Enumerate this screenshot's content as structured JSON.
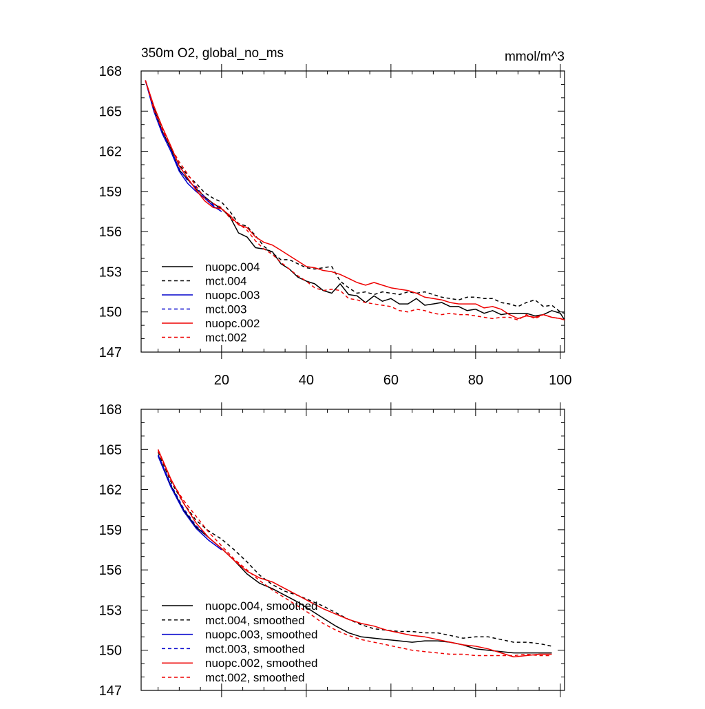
{
  "chart_data": [
    {
      "type": "line",
      "title_left": "350m O2, global_no_ms",
      "title_right": "mmol/m^3",
      "xlabel": "",
      "ylabel": "",
      "xlim": [
        1,
        101
      ],
      "ylim": [
        147,
        168
      ],
      "x_ticks": [
        20,
        40,
        60,
        80,
        100
      ],
      "x_tick_labels": [
        "20",
        "40",
        "60",
        "80",
        "100"
      ],
      "y_ticks": [
        147,
        150,
        153,
        156,
        159,
        162,
        165,
        168
      ],
      "y_tick_labels": [
        "147",
        "150",
        "153",
        "156",
        "159",
        "162",
        "165",
        "168"
      ],
      "legend_position": "lower-left",
      "series": [
        {
          "name": "nuopc.004",
          "color": "#000000",
          "dash": "solid",
          "x": [
            2,
            4,
            6,
            8,
            10,
            12,
            14,
            16,
            18,
            20,
            22,
            24,
            26,
            28,
            30,
            32,
            34,
            36,
            38,
            40,
            42,
            44,
            46,
            48,
            50,
            52,
            54,
            56,
            58,
            60,
            62,
            64,
            66,
            68,
            70,
            72,
            74,
            76,
            78,
            80,
            82,
            84,
            86,
            88,
            90,
            92,
            94,
            96,
            98,
            100,
            101
          ],
          "y": [
            167.3,
            165.2,
            163.5,
            162.2,
            160.6,
            159.9,
            159.2,
            158.6,
            158.1,
            157.7,
            157.1,
            155.9,
            155.6,
            154.8,
            154.7,
            154.5,
            153.6,
            153.2,
            152.6,
            152.3,
            152.1,
            151.6,
            151.4,
            152.1,
            151.3,
            151.2,
            150.7,
            151.2,
            150.8,
            151.0,
            150.6,
            150.6,
            151.0,
            150.5,
            150.6,
            150.7,
            150.4,
            150.4,
            150.1,
            150.2,
            149.9,
            150.1,
            149.8,
            149.9,
            149.9,
            149.9,
            149.7,
            149.8,
            150.1,
            149.9,
            149.4
          ]
        },
        {
          "name": "mct.004",
          "color": "#000000",
          "dash": "dashed",
          "x": [
            2,
            4,
            6,
            8,
            10,
            12,
            14,
            16,
            18,
            20,
            22,
            24,
            26,
            28,
            30,
            32,
            34,
            36,
            38,
            40,
            42,
            44,
            46,
            48,
            50,
            52,
            54,
            56,
            58,
            60,
            62,
            64,
            66,
            68,
            70,
            72,
            74,
            76,
            78,
            80,
            82,
            84,
            86,
            88,
            90,
            92,
            94,
            96,
            98,
            100,
            101
          ],
          "y": [
            167.3,
            165.3,
            163.7,
            162.3,
            161.0,
            160.2,
            159.6,
            158.9,
            158.5,
            158.2,
            157.5,
            156.6,
            156.4,
            155.7,
            154.9,
            154.4,
            153.9,
            153.9,
            153.6,
            153.3,
            153.2,
            153.3,
            153.4,
            152.3,
            151.8,
            151.4,
            151.5,
            151.3,
            151.5,
            151.4,
            151.3,
            151.5,
            151.4,
            151.5,
            151.3,
            151.1,
            151.0,
            150.9,
            151.1,
            151.1,
            151.0,
            151.0,
            150.7,
            150.6,
            150.4,
            150.7,
            150.9,
            150.4,
            150.5,
            150.0,
            149.9
          ]
        },
        {
          "name": "nuopc.003",
          "color": "#0000cc",
          "dash": "solid",
          "x": [
            2,
            4,
            6,
            8,
            10,
            12,
            14,
            16,
            18,
            20
          ],
          "y": [
            167.3,
            165.0,
            163.3,
            162.0,
            160.5,
            159.6,
            159.0,
            158.5,
            157.9,
            157.5
          ]
        },
        {
          "name": "mct.003",
          "color": "#0000cc",
          "dash": "dashed",
          "x": [
            2,
            4,
            6,
            8,
            10,
            12,
            14,
            16,
            18,
            20
          ],
          "y": [
            167.3,
            165.1,
            163.4,
            162.1,
            160.7,
            159.8,
            159.3,
            158.6,
            158.0,
            157.6
          ]
        },
        {
          "name": "nuopc.002",
          "color": "#ee0000",
          "dash": "solid",
          "x": [
            2,
            4,
            6,
            8,
            10,
            12,
            14,
            16,
            18,
            20,
            22,
            24,
            26,
            28,
            30,
            32,
            34,
            36,
            38,
            40,
            42,
            44,
            46,
            48,
            50,
            52,
            54,
            56,
            58,
            60,
            62,
            64,
            66,
            68,
            70,
            72,
            74,
            76,
            78,
            80,
            82,
            84,
            86,
            88,
            90,
            92,
            94,
            96,
            98,
            100,
            101
          ],
          "y": [
            167.3,
            165.4,
            163.8,
            162.4,
            160.9,
            160.0,
            159.1,
            158.3,
            157.8,
            157.7,
            157.2,
            156.5,
            156.3,
            155.6,
            155.2,
            155.0,
            154.6,
            154.2,
            153.8,
            153.4,
            153.3,
            153.1,
            153.0,
            152.8,
            152.5,
            152.2,
            152.0,
            152.2,
            152.0,
            151.8,
            151.7,
            151.6,
            151.4,
            151.1,
            151.0,
            150.9,
            150.7,
            150.6,
            150.6,
            150.6,
            150.3,
            150.4,
            150.2,
            149.8,
            149.5,
            149.7,
            149.6,
            149.8,
            149.6,
            149.5,
            149.4
          ]
        },
        {
          "name": "mct.002",
          "color": "#ee0000",
          "dash": "dashed",
          "x": [
            2,
            4,
            6,
            8,
            10,
            12,
            14,
            16,
            18,
            20,
            22,
            24,
            26,
            28,
            30,
            32,
            34,
            36,
            38,
            40,
            42,
            44,
            46,
            48,
            50,
            52,
            54,
            56,
            58,
            60,
            62,
            64,
            66,
            68,
            70,
            72,
            74,
            76,
            78,
            80,
            82,
            84,
            86,
            88,
            90,
            92,
            94,
            96,
            98,
            100,
            101
          ],
          "y": [
            167.3,
            165.1,
            163.6,
            162.3,
            161.2,
            160.3,
            159.4,
            158.5,
            158.1,
            157.8,
            157.0,
            156.6,
            156.1,
            155.3,
            154.7,
            154.3,
            153.7,
            153.2,
            152.7,
            152.3,
            151.8,
            151.6,
            151.7,
            151.6,
            151.0,
            150.9,
            150.7,
            150.6,
            150.5,
            150.4,
            150.1,
            150.0,
            150.2,
            150.1,
            149.9,
            149.8,
            149.9,
            149.8,
            149.8,
            149.7,
            149.6,
            149.5,
            149.6,
            149.6,
            149.4,
            149.8,
            149.5,
            149.8,
            149.6,
            149.5,
            149.4
          ]
        }
      ]
    },
    {
      "type": "line",
      "title_left": "",
      "title_right": "",
      "xlabel": "",
      "ylabel": "",
      "xlim": [
        1,
        101
      ],
      "ylim": [
        147,
        168
      ],
      "x_ticks": [
        20,
        40,
        60,
        80,
        100
      ],
      "x_tick_labels": [],
      "y_ticks": [
        147,
        150,
        153,
        156,
        159,
        162,
        165,
        168
      ],
      "y_tick_labels": [
        "147",
        "150",
        "153",
        "156",
        "159",
        "162",
        "165",
        "168"
      ],
      "legend_position": "lower-left",
      "series": [
        {
          "name": "nuopc.004, smoothed",
          "color": "#000000",
          "dash": "solid",
          "x": [
            5,
            8,
            11,
            14,
            17,
            20,
            23,
            26,
            29,
            32,
            35,
            38,
            41,
            44,
            47,
            50,
            53,
            56,
            59,
            62,
            65,
            68,
            71,
            74,
            77,
            80,
            83,
            86,
            89,
            92,
            95,
            98
          ],
          "y": [
            164.6,
            162.3,
            160.5,
            159.2,
            158.4,
            157.6,
            156.7,
            155.7,
            155.0,
            154.6,
            154.1,
            153.6,
            153.0,
            152.4,
            151.8,
            151.3,
            151.0,
            150.9,
            150.8,
            150.7,
            150.6,
            150.7,
            150.7,
            150.6,
            150.4,
            150.1,
            150.0,
            149.9,
            149.8,
            149.8,
            149.8,
            149.8
          ]
        },
        {
          "name": "mct.004, smoothed",
          "color": "#000000",
          "dash": "dashed",
          "x": [
            5,
            8,
            11,
            14,
            17,
            20,
            23,
            26,
            29,
            32,
            35,
            38,
            41,
            44,
            47,
            50,
            53,
            56,
            59,
            62,
            65,
            68,
            71,
            74,
            77,
            80,
            83,
            86,
            89,
            92,
            95,
            98
          ],
          "y": [
            164.8,
            162.6,
            161.0,
            159.7,
            158.9,
            158.3,
            157.5,
            156.6,
            155.6,
            154.9,
            154.4,
            154.1,
            153.7,
            153.3,
            152.8,
            152.3,
            151.9,
            151.6,
            151.5,
            151.4,
            151.4,
            151.3,
            151.3,
            151.1,
            150.9,
            151.0,
            151.0,
            150.8,
            150.6,
            150.6,
            150.5,
            150.3
          ]
        },
        {
          "name": "nuopc.003, smoothed",
          "color": "#0000cc",
          "dash": "solid",
          "x": [
            5,
            8,
            11,
            14,
            17,
            20
          ],
          "y": [
            164.5,
            162.2,
            160.4,
            159.1,
            158.2,
            157.5
          ]
        },
        {
          "name": "mct.003, smoothed",
          "color": "#0000cc",
          "dash": "dashed",
          "x": [
            5,
            8,
            11,
            14,
            17,
            20
          ],
          "y": [
            164.6,
            162.4,
            160.6,
            159.3,
            158.4,
            157.6
          ]
        },
        {
          "name": "nuopc.002, smoothed",
          "color": "#ee0000",
          "dash": "solid",
          "x": [
            5,
            8,
            11,
            14,
            17,
            20,
            23,
            26,
            29,
            32,
            35,
            38,
            41,
            44,
            47,
            50,
            53,
            56,
            59,
            62,
            65,
            68,
            71,
            74,
            77,
            80,
            83,
            86,
            89,
            92,
            95,
            98
          ],
          "y": [
            165.0,
            162.8,
            161.0,
            159.5,
            158.4,
            157.6,
            156.7,
            155.9,
            155.4,
            155.1,
            154.6,
            154.1,
            153.6,
            153.1,
            152.7,
            152.3,
            152.0,
            151.8,
            151.5,
            151.3,
            151.1,
            151.0,
            150.8,
            150.6,
            150.4,
            150.3,
            150.1,
            149.8,
            149.5,
            149.6,
            149.7,
            149.7
          ]
        },
        {
          "name": "mct.002, smoothed",
          "color": "#ee0000",
          "dash": "dashed",
          "x": [
            5,
            8,
            11,
            14,
            17,
            20,
            23,
            26,
            29,
            32,
            35,
            38,
            41,
            44,
            47,
            50,
            53,
            56,
            59,
            62,
            65,
            68,
            71,
            74,
            77,
            80,
            83,
            86,
            89,
            92,
            95,
            98
          ],
          "y": [
            164.9,
            162.7,
            161.2,
            160.0,
            158.8,
            157.8,
            156.8,
            156.0,
            155.2,
            154.5,
            153.9,
            153.3,
            152.7,
            152.0,
            151.5,
            151.1,
            150.8,
            150.6,
            150.4,
            150.2,
            150.0,
            149.9,
            149.8,
            149.7,
            149.7,
            149.6,
            149.6,
            149.6,
            149.6,
            149.7,
            149.6,
            149.6
          ]
        }
      ]
    }
  ]
}
